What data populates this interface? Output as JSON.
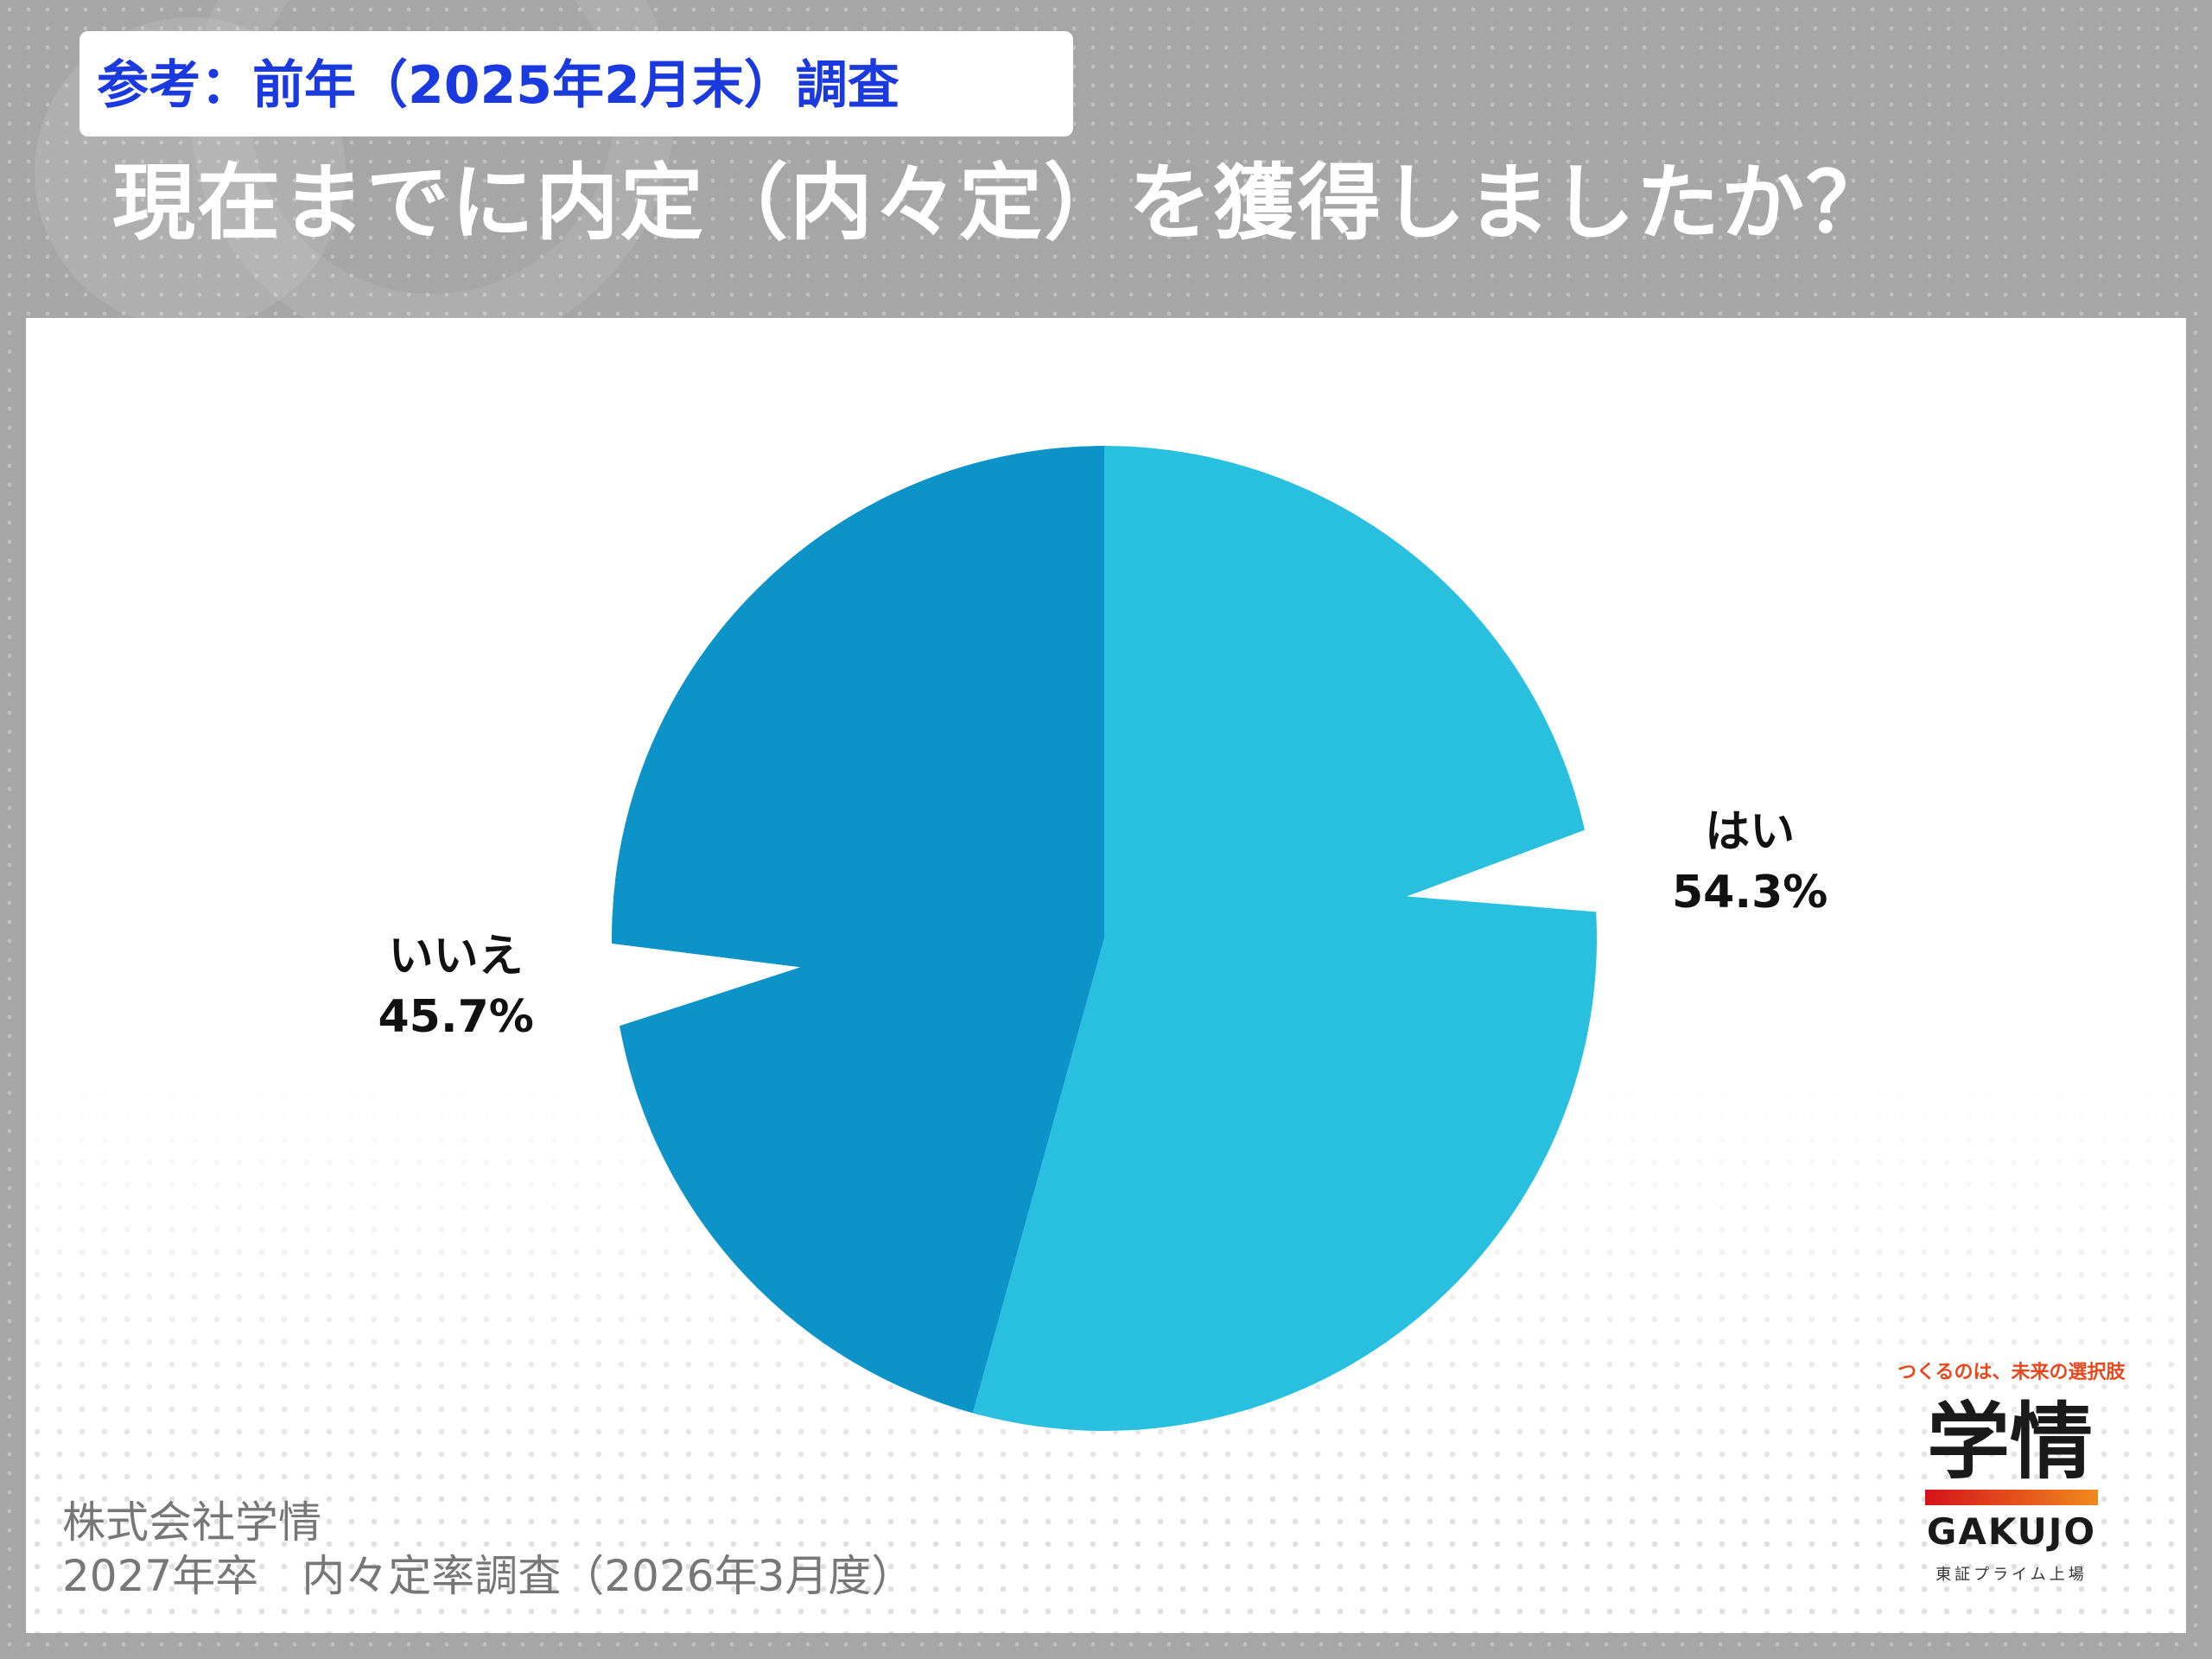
{
  "header": {
    "tag": "参考：前年（2025年2月末）調査",
    "question": "現在までに内定（内々定）を獲得しましたか？"
  },
  "chart_data": {
    "type": "pie",
    "title": "現在までに内定（内々定）を獲得しましたか？",
    "slices": [
      {
        "label": "はい",
        "value": 54.3,
        "value_text": "54.3%",
        "color": "#29c0e0"
      },
      {
        "label": "いいえ",
        "value": 45.7,
        "value_text": "45.7%",
        "color": "#0c93c8"
      }
    ],
    "start_angle_deg": 0,
    "direction": "clockwise",
    "legend": "none"
  },
  "footer": {
    "company": "株式会社学情",
    "survey": "2027年卒　内々定率調査（2026年3月度）"
  },
  "logo": {
    "tagline": "つくるのは、未来の選択肢",
    "mark": "学情",
    "word": "GAKUJO",
    "sub": "東証プライム上場"
  }
}
